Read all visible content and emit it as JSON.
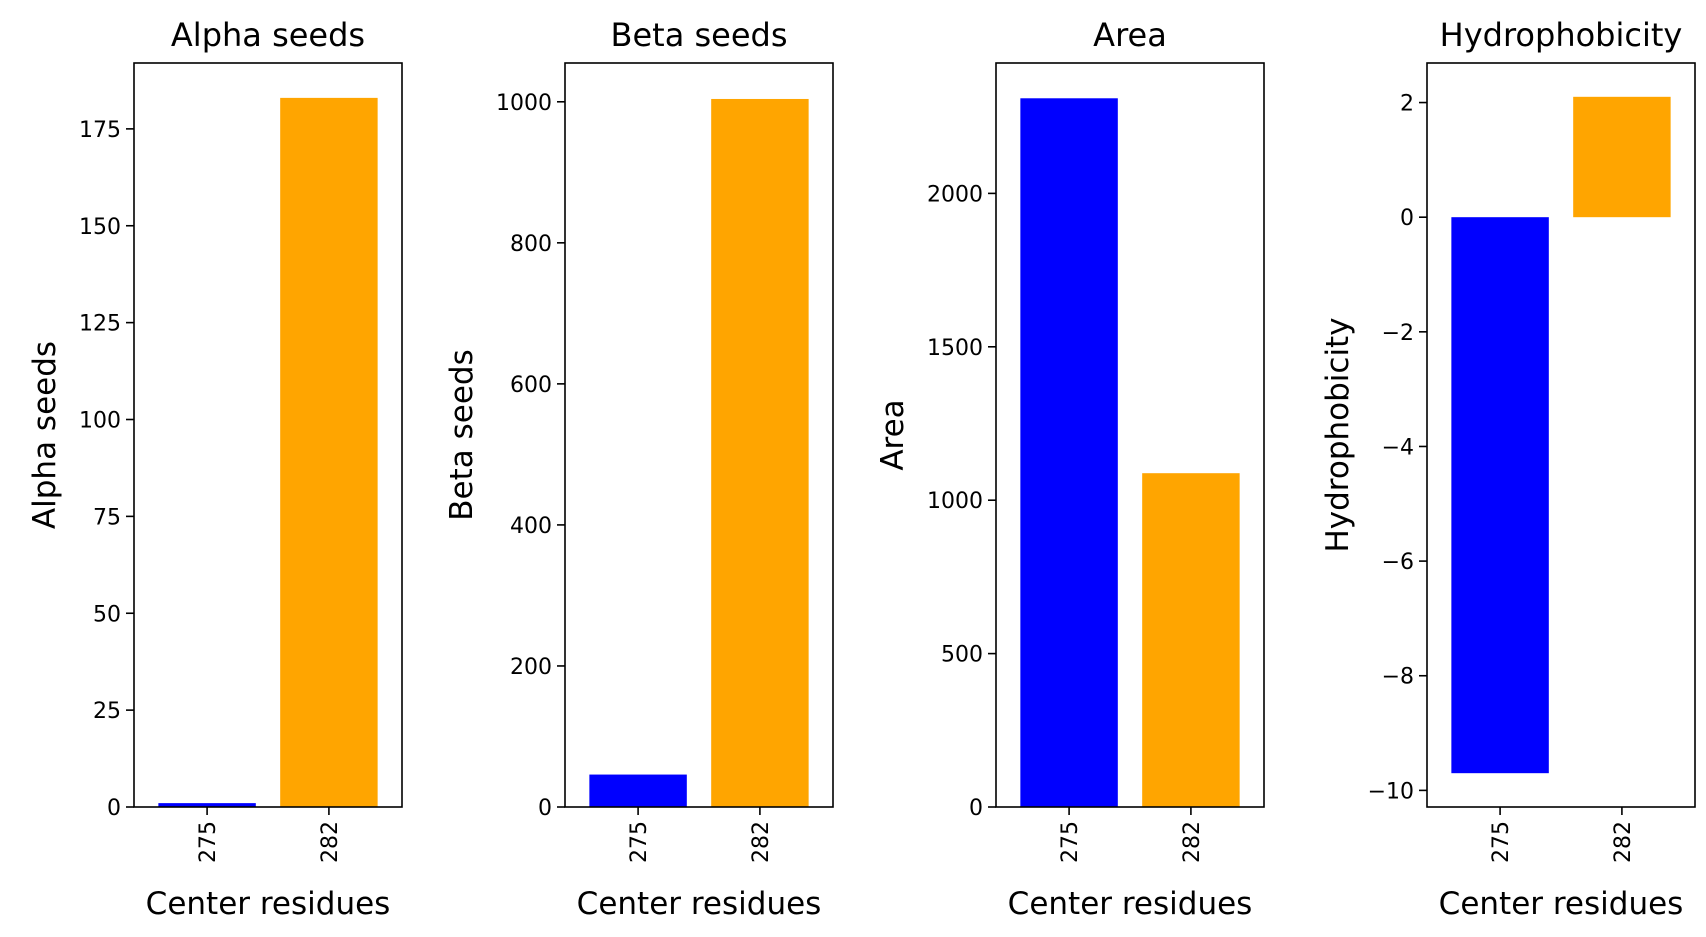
{
  "chart_data": [
    {
      "type": "bar",
      "title": "Alpha seeds",
      "xlabel": "Center residues",
      "ylabel": "Alpha seeds",
      "categories": [
        "275",
        "282"
      ],
      "values": [
        1,
        183
      ],
      "colors": [
        "#0000ff",
        "#ffa500"
      ],
      "ylim": [
        0,
        192
      ],
      "yticks": [
        0,
        25,
        50,
        75,
        100,
        125,
        150,
        175
      ],
      "grid": false
    },
    {
      "type": "bar",
      "title": "Beta seeds",
      "xlabel": "Center residues",
      "ylabel": "Beta seeds",
      "categories": [
        "275",
        "282"
      ],
      "values": [
        46,
        1004
      ],
      "colors": [
        "#0000ff",
        "#ffa500"
      ],
      "ylim": [
        0,
        1055
      ],
      "yticks": [
        0,
        200,
        400,
        600,
        800,
        1000
      ],
      "grid": false
    },
    {
      "type": "bar",
      "title": "Area",
      "xlabel": "Center residues",
      "ylabel": "Area",
      "categories": [
        "275",
        "282"
      ],
      "values": [
        2310,
        1088
      ],
      "colors": [
        "#0000ff",
        "#ffa500"
      ],
      "ylim": [
        0,
        2425
      ],
      "yticks": [
        0,
        500,
        1000,
        1500,
        2000
      ],
      "grid": false
    },
    {
      "type": "bar",
      "title": "Hydrophobicity",
      "xlabel": "Center residues",
      "ylabel": "Hydrophobicity",
      "categories": [
        "275",
        "282"
      ],
      "values": [
        -9.7,
        2.1
      ],
      "colors": [
        "#0000ff",
        "#ffa500"
      ],
      "ylim": [
        -10.29,
        2.69
      ],
      "yticks": [
        -10,
        -8,
        -6,
        -4,
        -2,
        0,
        2
      ],
      "ytick_labels": [
        "−10",
        "−8",
        "−6",
        "−4",
        "−2",
        "0",
        "2"
      ],
      "grid": false
    }
  ]
}
